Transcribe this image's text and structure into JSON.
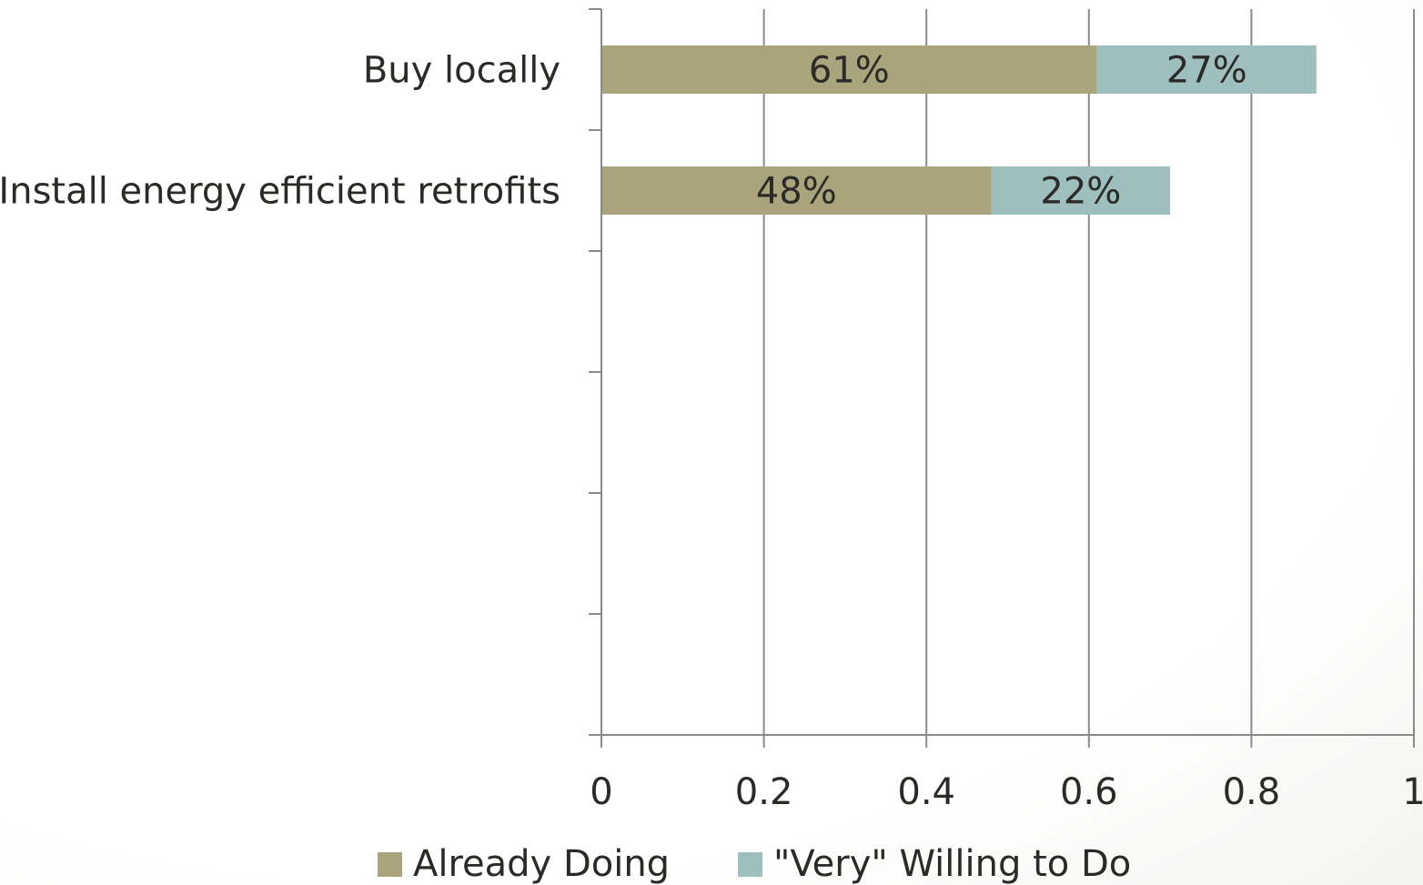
{
  "chart_data": {
    "type": "bar",
    "orientation": "horizontal",
    "stacked": true,
    "categories": [
      "Buy locally",
      "Install energy efficient retrofits",
      "",
      "",
      "",
      ""
    ],
    "series": [
      {
        "name": "Already Doing",
        "values": [
          0.61,
          0.48,
          null,
          null,
          null,
          null
        ],
        "labels": [
          "61%",
          "48%",
          "",
          "",
          "",
          ""
        ],
        "color": "#a9a47b"
      },
      {
        "name": "\"Very\" Willing to Do",
        "values": [
          0.27,
          0.22,
          null,
          null,
          null,
          null
        ],
        "labels": [
          "27%",
          "22%",
          "",
          "",
          "",
          ""
        ],
        "color": "#9dbfbe"
      }
    ],
    "xlim": [
      0,
      1
    ],
    "xticks": [
      0,
      0.2,
      0.4,
      0.6,
      0.8,
      1
    ],
    "xtick_labels": [
      "0",
      "0.2",
      "0.4",
      "0.6",
      "0.8",
      "1"
    ],
    "grid": "vertical",
    "legend": "bottom"
  }
}
